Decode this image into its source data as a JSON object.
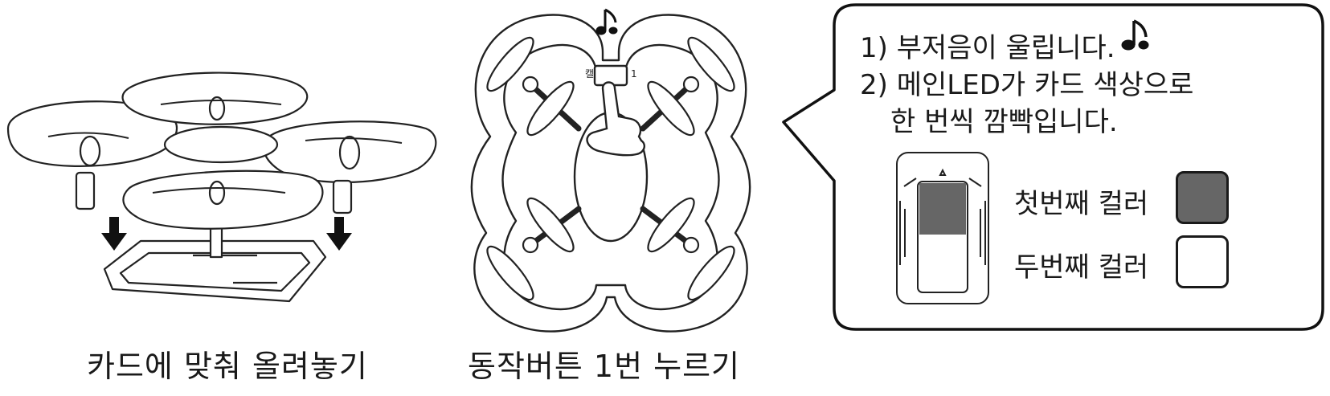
{
  "steps": [
    {
      "caption": "카드에 맞춰 올려놓기"
    },
    {
      "caption": "동작버튼 1번 누르기",
      "button_labels": {
        "left": "캘",
        "right": "1"
      }
    }
  ],
  "info": {
    "line1": "1) 부저음이 울립니다.",
    "line2": "2) 메인LED가 카드 색상으로",
    "line3": "한 번씩 깜빡입니다.",
    "legend": [
      {
        "label": "첫번째 컬러",
        "color": "#666666"
      },
      {
        "label": "두번째 컬러",
        "color": "#ffffff"
      }
    ]
  }
}
